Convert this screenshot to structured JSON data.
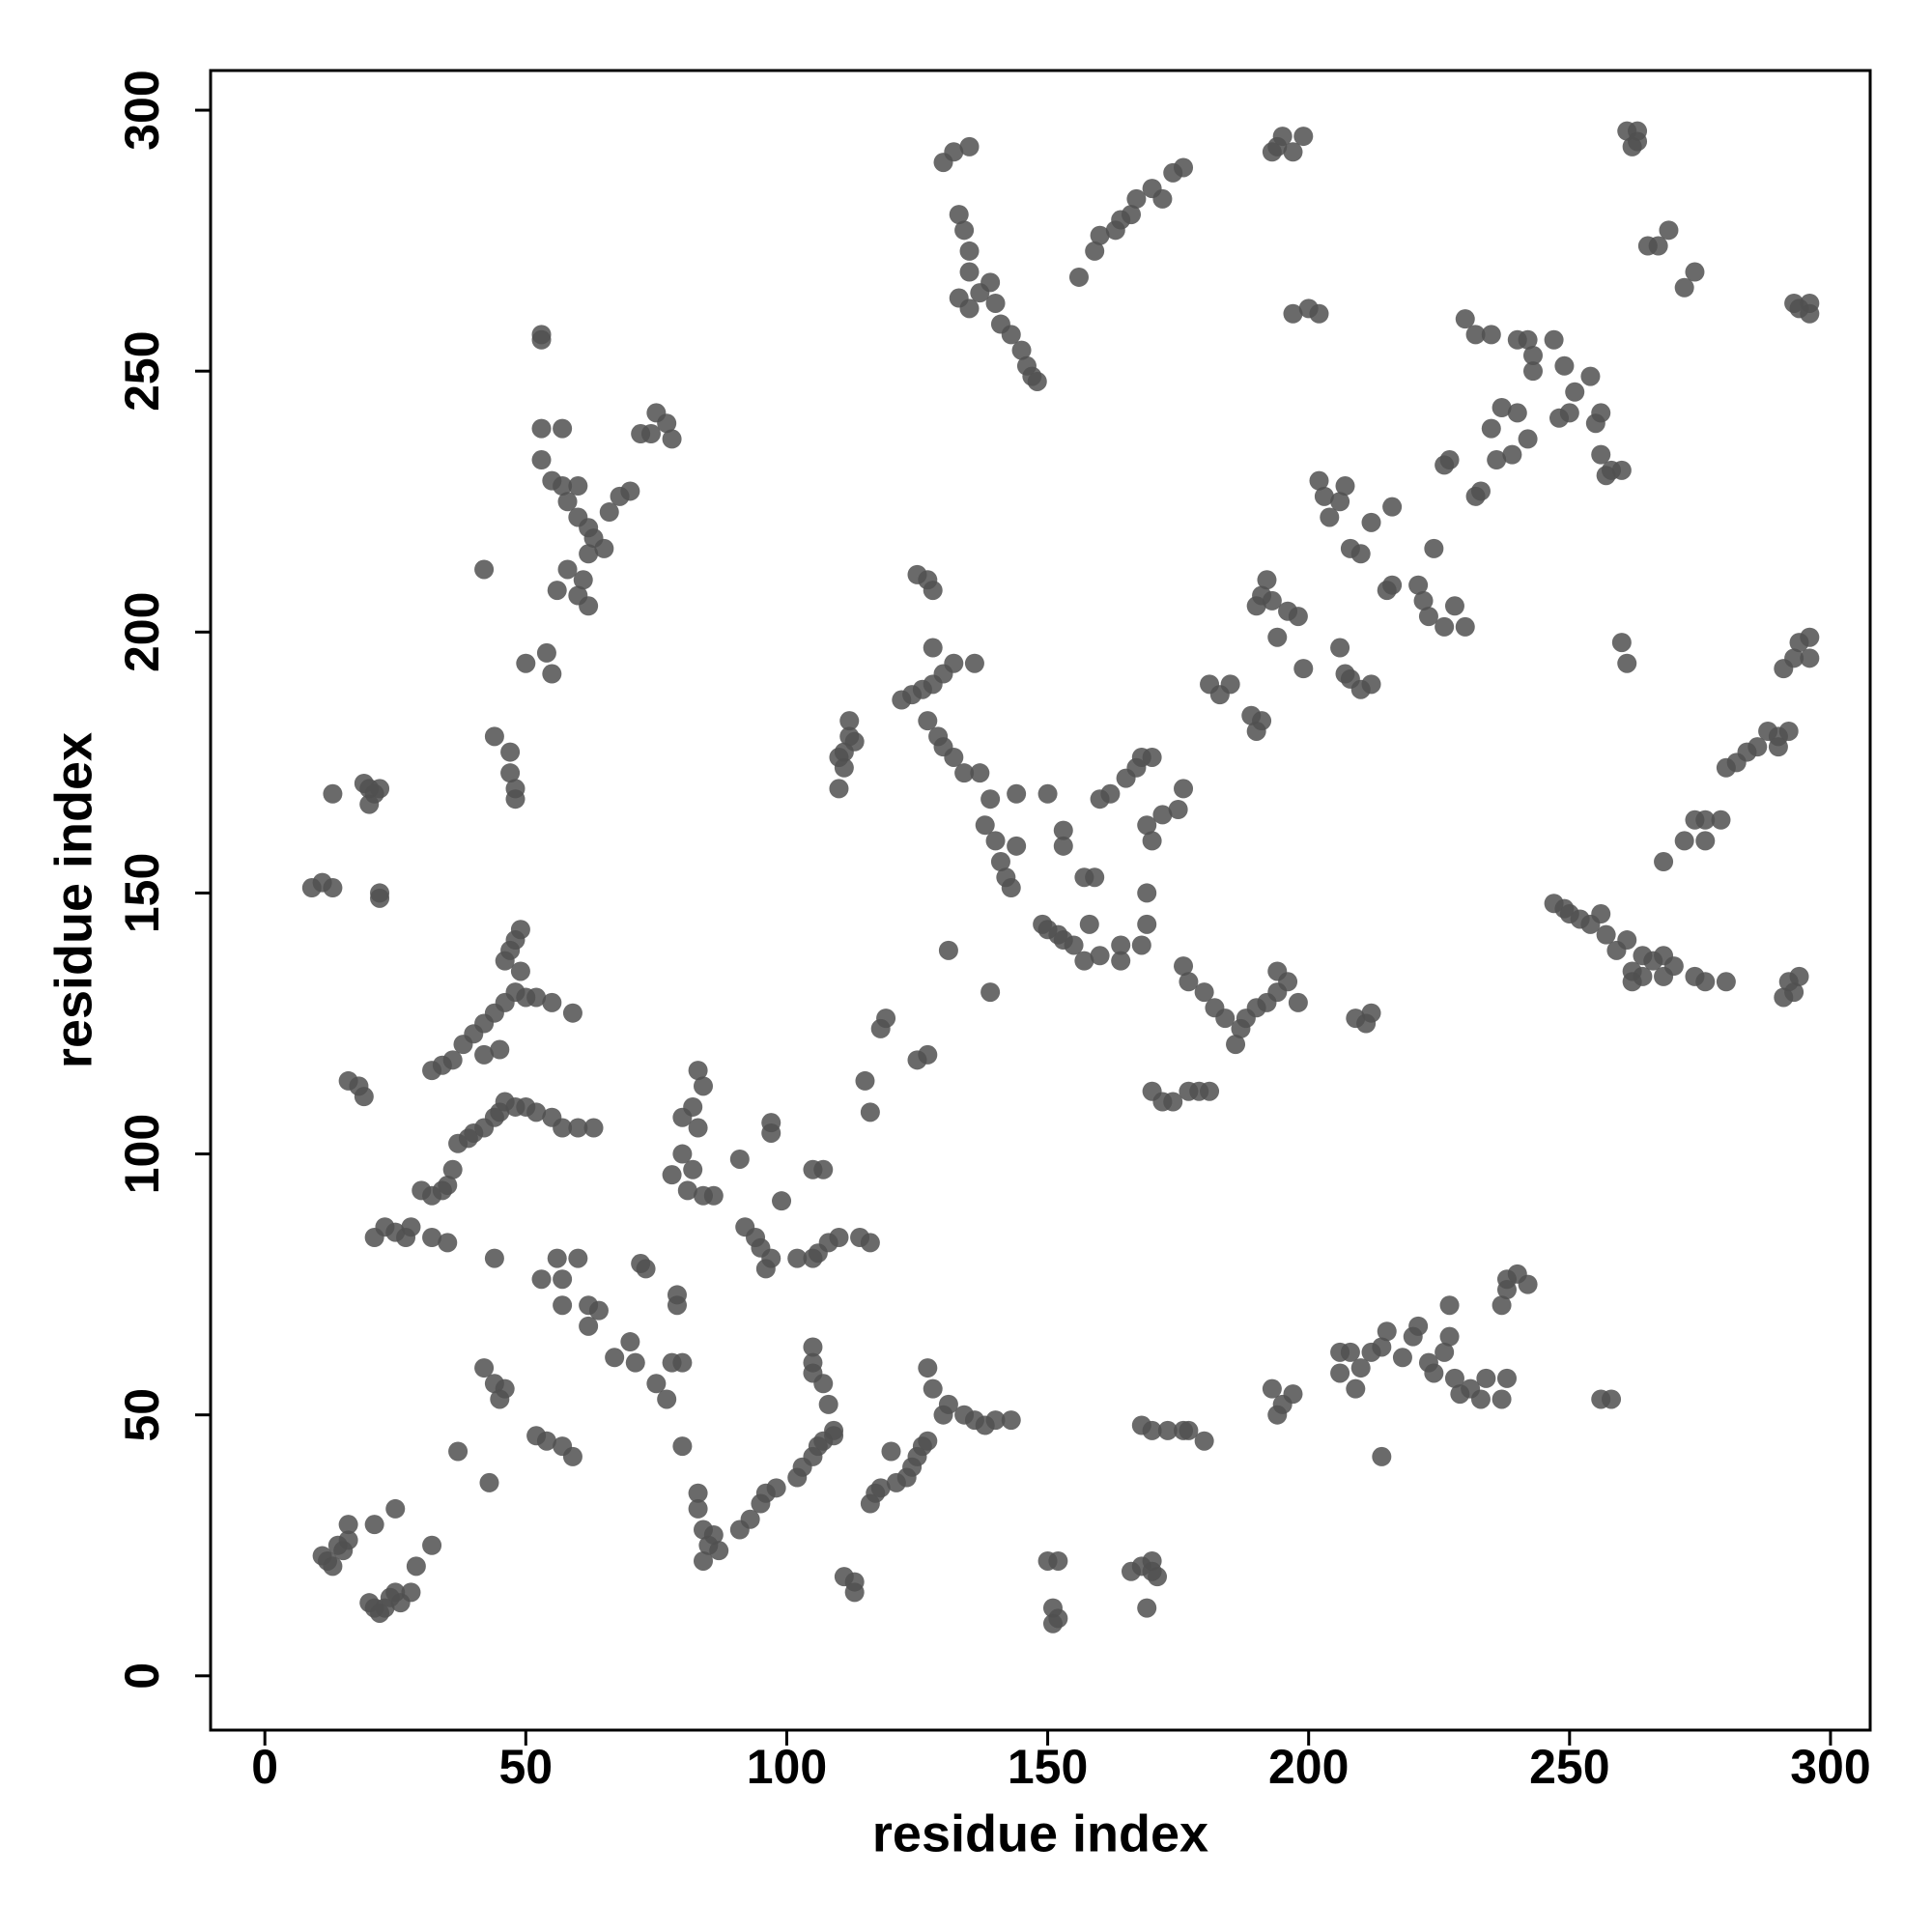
{
  "chart_data": {
    "type": "scatter",
    "xlabel": "residue index",
    "ylabel": "residue index",
    "xlim": [
      -10.4,
      307.6
    ],
    "ylim": [
      -10.4,
      307.6
    ],
    "xticks": [
      0,
      50,
      100,
      150,
      200,
      250,
      300
    ],
    "yticks": [
      0,
      50,
      100,
      150,
      200,
      250,
      300
    ],
    "grid": false,
    "color": "#505050",
    "x": [
      11,
      12,
      13,
      14,
      15,
      16,
      16,
      21,
      20,
      21,
      22,
      23,
      24,
      25,
      26,
      28,
      25,
      32,
      29,
      9,
      11,
      13,
      22,
      22,
      13,
      19,
      20,
      21,
      22,
      20,
      16,
      18,
      19,
      21,
      23,
      25,
      27,
      28,
      30,
      32,
      34,
      35,
      36,
      37,
      39,
      40,
      42,
      44,
      45,
      46,
      48,
      50,
      52,
      55,
      57,
      60,
      63,
      32,
      35,
      44,
      32,
      34,
      36,
      38,
      40,
      42,
      44,
      46,
      48,
      50,
      52,
      55,
      59,
      46,
      47,
      48,
      49,
      45,
      42,
      49,
      44,
      47,
      47,
      48,
      48,
      42,
      50,
      54,
      55,
      53,
      53,
      53,
      57,
      53,
      55,
      57,
      58,
      60,
      62,
      63,
      65,
      66,
      68,
      70,
      60,
      62,
      61,
      60,
      62,
      56,
      58,
      72,
      74,
      75,
      77,
      78,
      37,
      43,
      42,
      44,
      45,
      46,
      52,
      54,
      57,
      59,
      53,
      56,
      57,
      57,
      60,
      62,
      62,
      64,
      67,
      70,
      71,
      72,
      73,
      75,
      77,
      78,
      80,
      79,
      79,
      80,
      78,
      80,
      80,
      82,
      83,
      84,
      83,
      82,
      84,
      86,
      81,
      83,
      83,
      84,
      85,
      86,
      87,
      84,
      91,
      92,
      94,
      95,
      97,
      96,
      97,
      97,
      99,
      102,
      91,
      93,
      95,
      96,
      98,
      102,
      103,
      105,
      106,
      107,
      109,
      105,
      105,
      105,
      107,
      108,
      109,
      105,
      106,
      108,
      110,
      114,
      116,
      105,
      107,
      111,
      113,
      113,
      115,
      116,
      116,
      117,
      118,
      120,
      121,
      123,
      124,
      125,
      126,
      127,
      127,
      128,
      130,
      131,
      134,
      136,
      138,
      140,
      143,
      118,
      119,
      125,
      127,
      110,
      111,
      111,
      112,
      112,
      113,
      110,
      122,
      124,
      126,
      128,
      130,
      132,
      136,
      128,
      127,
      129,
      130,
      132,
      134,
      137,
      125,
      127,
      128,
      131,
      138,
      141,
      142,
      143,
      144,
      144,
      139,
      150,
      149,
      150,
      152,
      153,
      155,
      157,
      160,
      164,
      164,
      158,
      153,
      153,
      157,
      159,
      160,
      162,
      165,
      167,
      168,
      170,
      169,
      170,
      172,
      175,
      176,
      169,
      168,
      169,
      176,
      177,
      180,
      182,
      184,
      186,
      187,
      188,
      190,
      192,
      194,
      196,
      198,
      194,
      139,
      140,
      130,
      132,
      135,
      133,
      134,
      135,
      135,
      133,
      135,
      137,
      139,
      140,
      141,
      143,
      145,
      146,
      147,
      148,
      156,
      159,
      160,
      163,
      164,
      166,
      167,
      170,
      172,
      174,
      176,
      193,
      194,
      195,
      197,
      199,
      200,
      202,
      197,
      170,
      172,
      174,
      177,
      179,
      181,
      181,
      183,
      185,
      190,
      191,
      192,
      193,
      194,
      196,
      198,
      199,
      189,
      190,
      191,
      202,
      203,
      204,
      206,
      207,
      208,
      210,
      212,
      206,
      207,
      208,
      210,
      212,
      215,
      216,
      216,
      221,
      222,
      223,
      224,
      226,
      228,
      230,
      212,
      211,
      209,
      206,
      206,
      208,
      209,
      210,
      212,
      214,
      215,
      218,
      220,
      221,
      223,
      224,
      226,
      227,
      227,
      228,
      229,
      231,
      233,
      234,
      237,
      238,
      238,
      240,
      242,
      237,
      238,
      193,
      195,
      197,
      194,
      214,
      256,
      258,
      150,
      152,
      151,
      151,
      152,
      166,
      168,
      170,
      171,
      170,
      169,
      168,
      170,
      173,
      176,
      177,
      180,
      230,
      232,
      235,
      240,
      242,
      243,
      247,
      249,
      243,
      240,
      237,
      235,
      233,
      232,
      227,
      226,
      236,
      239,
      242,
      248,
      250,
      251,
      254,
      255,
      256,
      256,
      257,
      258,
      260,
      260,
      261,
      262,
      263,
      261,
      263,
      265,
      267,
      269,
      272,
      274,
      294,
      296,
      296,
      293,
      247,
      249,
      250,
      252,
      254,
      256,
      257,
      259,
      261,
      262,
      264,
      264,
      266,
      268,
      270,
      268,
      274,
      276,
      280,
      262,
      268,
      272,
      274,
      276,
      279,
      276,
      280,
      282,
      284,
      286,
      288,
      290,
      292,
      290,
      291,
      293,
      294,
      292,
      291,
      293,
      294,
      296,
      296
    ],
    "values": [
      23,
      22,
      21,
      25,
      24,
      26,
      29,
      29,
      14,
      13,
      12,
      13,
      15,
      16,
      14,
      16,
      32,
      25,
      21,
      151,
      152,
      151,
      150,
      149,
      169,
      171,
      170,
      169,
      170,
      167,
      114,
      113,
      111,
      84,
      86,
      85,
      84,
      86,
      93,
      92,
      93,
      94,
      97,
      102,
      103,
      104,
      105,
      107,
      108,
      110,
      109,
      109,
      108,
      107,
      105,
      105,
      105,
      84,
      83,
      80,
      116,
      117,
      118,
      121,
      123,
      125,
      127,
      129,
      131,
      130,
      130,
      129,
      127,
      137,
      139,
      141,
      143,
      120,
      119,
      135,
      180,
      177,
      173,
      170,
      168,
      212,
      194,
      196,
      192,
      256,
      257,
      239,
      239,
      233,
      229,
      228,
      225,
      222,
      220,
      218,
      216,
      223,
      226,
      227,
      228,
      215,
      210,
      207,
      205,
      208,
      212,
      238,
      238,
      242,
      240,
      237,
      43,
      37,
      59,
      56,
      53,
      55,
      46,
      45,
      44,
      42,
      76,
      80,
      76,
      71,
      80,
      71,
      67,
      70,
      61,
      64,
      60,
      79,
      78,
      56,
      53,
      60,
      60,
      73,
      71,
      44,
      96,
      100,
      107,
      109,
      116,
      113,
      105,
      97,
      92,
      92,
      93,
      35,
      32,
      28,
      25,
      27,
      24,
      22,
      99,
      86,
      84,
      82,
      80,
      78,
      104,
      106,
      91,
      80,
      28,
      30,
      33,
      35,
      36,
      38,
      40,
      42,
      44,
      45,
      47,
      58,
      63,
      60,
      56,
      52,
      46,
      80,
      81,
      83,
      84,
      84,
      83,
      97,
      97,
      19,
      18,
      16,
      114,
      108,
      33,
      35,
      36,
      43,
      37,
      38,
      40,
      42,
      44,
      45,
      59,
      55,
      50,
      52,
      50,
      49,
      48,
      49,
      49,
      124,
      126,
      118,
      119,
      170,
      174,
      177,
      180,
      183,
      179,
      176,
      187,
      188,
      189,
      190,
      192,
      194,
      194,
      197,
      183,
      180,
      178,
      176,
      173,
      173,
      211,
      210,
      208,
      139,
      163,
      156,
      153,
      151,
      159,
      169,
      168,
      169,
      144,
      143,
      142,
      141,
      140,
      137,
      138,
      137,
      140,
      144,
      159,
      162,
      153,
      153,
      168,
      169,
      172,
      174,
      176,
      176,
      163,
      160,
      165,
      166,
      170,
      150,
      140,
      144,
      136,
      133,
      131,
      128,
      126,
      121,
      124,
      126,
      128,
      129,
      131,
      133,
      129,
      135,
      131,
      160,
      290,
      292,
      293,
      280,
      277,
      273,
      269,
      264,
      262,
      265,
      267,
      263,
      259,
      257,
      254,
      251,
      249,
      248,
      268,
      273,
      276,
      277,
      279,
      280,
      283,
      285,
      283,
      288,
      289,
      292,
      293,
      295,
      292,
      295,
      262,
      261,
      261,
      112,
      110,
      110,
      112,
      112,
      112,
      190,
      188,
      190,
      205,
      207,
      210,
      206,
      199,
      204,
      203,
      193,
      184,
      181,
      183,
      229,
      226,
      222,
      225,
      228,
      216,
      215,
      221,
      197,
      192,
      191,
      189,
      190,
      208,
      209,
      224,
      209,
      206,
      203,
      216,
      201,
      205,
      201,
      127,
      125,
      126,
      62,
      58,
      62,
      55,
      59,
      62,
      63,
      66,
      61,
      65,
      67,
      60,
      58,
      62,
      71,
      65,
      57,
      54,
      55,
      53,
      57,
      71,
      74,
      76,
      77,
      75,
      53,
      57,
      55,
      52,
      54,
      50,
      42,
      53,
      53,
      22,
      22,
      13,
      10,
      11,
      20,
      21,
      22,
      19,
      20,
      13,
      48,
      47,
      47,
      47,
      47,
      45,
      260,
      257,
      257,
      256,
      256,
      253,
      256,
      251,
      250,
      242,
      243,
      239,
      227,
      226,
      233,
      232,
      233,
      234,
      237,
      241,
      242,
      246,
      249,
      240,
      242,
      234,
      230,
      231,
      231,
      198,
      194,
      293,
      294,
      296,
      296,
      274,
      274,
      277,
      266,
      269,
      262,
      261,
      263,
      263,
      148,
      147,
      146,
      145,
      144,
      146,
      142,
      139,
      141,
      135,
      134,
      138,
      137,
      138,
      136,
      134,
      134,
      133,
      133,
      133,
      156,
      160,
      164,
      164,
      164,
      160,
      174,
      175,
      177,
      178,
      181,
      180,
      181,
      178,
      130,
      131,
      134,
      133,
      193,
      195,
      198,
      195,
      199
    ]
  }
}
